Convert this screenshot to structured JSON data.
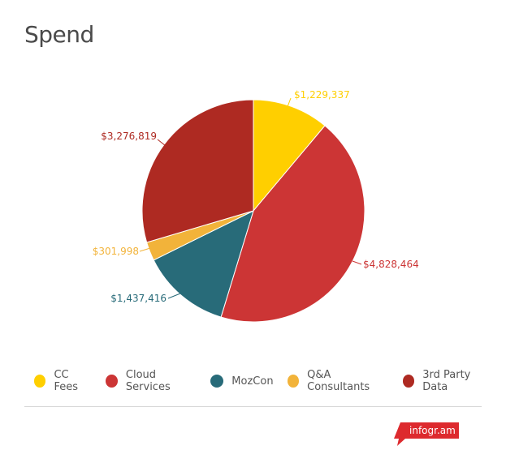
{
  "title": "Spend",
  "chart_data": {
    "type": "pie",
    "title": "Spend",
    "categories": [
      "CC Fees",
      "Cloud Services",
      "MozCon",
      "Q&A Consultants",
      "3rd Party Data"
    ],
    "values": [
      1229337,
      4828464,
      1437416,
      301998,
      3276819
    ],
    "labels": [
      "$1,229,337",
      "$4,828,464",
      "$1,437,416",
      "$301,998",
      "$3,276,819"
    ],
    "colors": [
      "#ffcf00",
      "#cc3535",
      "#286b79",
      "#f2b33a",
      "#ae2a22"
    ],
    "legend_position": "bottom",
    "start_angle": "12 o'clock, clockwise"
  },
  "legend": [
    {
      "label": "CC Fees",
      "color": "#ffcf00"
    },
    {
      "label": "Cloud Services",
      "color": "#cc3535"
    },
    {
      "label": "MozCon",
      "color": "#286b79"
    },
    {
      "label": "Q&A Consultants",
      "color": "#f2b33a"
    },
    {
      "label": "3rd Party Data",
      "color": "#ae2a22"
    }
  ],
  "footer": {
    "brand": "infogr.am"
  }
}
